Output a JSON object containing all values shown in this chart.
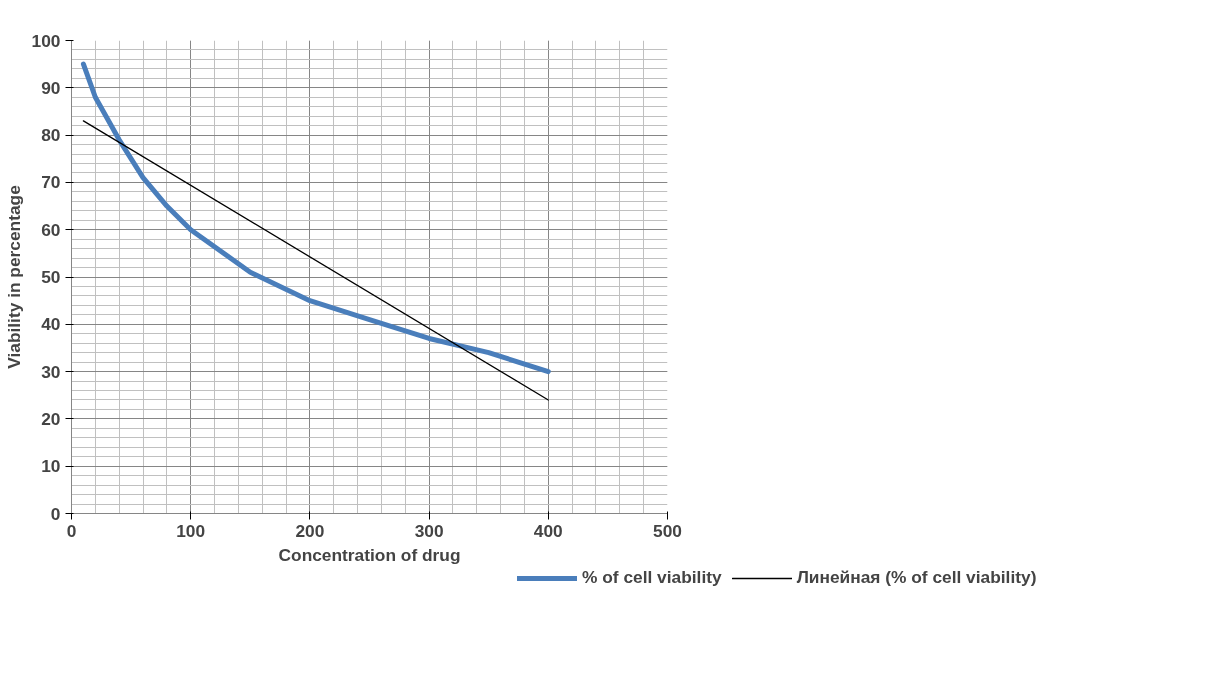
{
  "chart_data": {
    "type": "line",
    "xlabel": "Concentration of drug",
    "ylabel": "Viability in percentage",
    "xlim": [
      0,
      500
    ],
    "xticks": [
      0,
      100,
      200,
      300,
      400,
      500
    ],
    "ylim": [
      0,
      100
    ],
    "yticks": [
      0,
      10,
      20,
      30,
      40,
      50,
      60,
      70,
      80,
      90,
      100
    ],
    "grid": true,
    "legend": "bottom",
    "marker": "none",
    "series": [
      {
        "name": "% of cell viability",
        "color": "#4a7ebb",
        "x": [
          10,
          20,
          40,
          60,
          80,
          100,
          150,
          200,
          250,
          300,
          350,
          400
        ],
        "values": [
          95,
          88,
          79,
          71,
          65,
          60,
          51,
          45,
          41,
          37,
          34,
          30
        ]
      },
      {
        "name": "Линейная (% of cell viability)",
        "color": "#000000",
        "x": [
          10,
          400
        ],
        "values": [
          83,
          24
        ]
      }
    ]
  }
}
